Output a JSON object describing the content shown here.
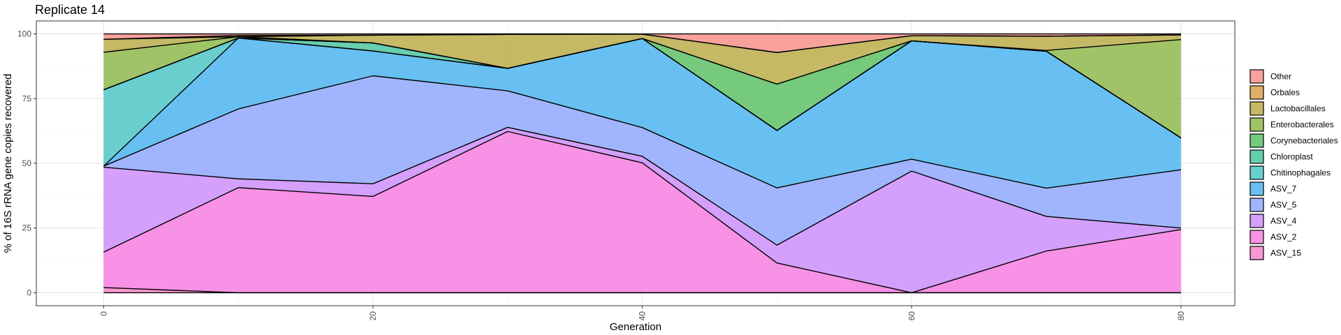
{
  "chart_data": {
    "type": "area",
    "stacked": true,
    "title": "Replicate 14",
    "xlabel": "Generation",
    "ylabel": "% of 16S rRNA gene copies recovered",
    "x": [
      0,
      10,
      20,
      30,
      40,
      50,
      60,
      70,
      80
    ],
    "xlim": [
      -5,
      84
    ],
    "ylim": [
      -5,
      105
    ],
    "x_ticks": [
      0,
      20,
      40,
      60,
      80
    ],
    "y_ticks": [
      0,
      25,
      50,
      75,
      100
    ],
    "grid": true,
    "legend_position": "right",
    "series": [
      {
        "name": "ASV_15",
        "color": "#F885C9",
        "values": [
          2,
          0,
          0,
          0,
          0,
          0,
          0,
          0,
          0
        ]
      },
      {
        "name": "ASV_2",
        "color": "#F67FE2",
        "values": [
          13.7,
          40.6,
          37.2,
          62.3,
          50.2,
          11.5,
          0,
          16.1,
          24.4
        ]
      },
      {
        "name": "ASV_4",
        "color": "#CC8FFB",
        "values": [
          32.8,
          3.4,
          4.9,
          1.6,
          2.5,
          6.9,
          47,
          13.4,
          0.6
        ]
      },
      {
        "name": "ASV_5",
        "color": "#8FA8FD",
        "values": [
          0.4,
          27,
          41.7,
          14.1,
          11.1,
          22.1,
          4.6,
          10.9,
          22.5
        ]
      },
      {
        "name": "ASV_7",
        "color": "#4EB5F0",
        "values": [
          0,
          27.4,
          9.6,
          8.7,
          34.4,
          22.2,
          45.7,
          52.9,
          12.3
        ]
      },
      {
        "name": "Chitinophagales",
        "color": "#4FC5C5",
        "values": [
          29.5,
          0,
          0,
          0,
          0,
          0,
          0,
          0,
          0
        ]
      },
      {
        "name": "Chloroplast",
        "color": "#4CC5A0",
        "values": [
          0,
          0,
          3.1,
          0,
          0,
          0,
          0,
          0,
          0
        ]
      },
      {
        "name": "Corynebacteriales",
        "color": "#5DC166",
        "values": [
          0,
          0,
          0,
          0,
          0,
          17.9,
          0,
          0,
          0
        ]
      },
      {
        "name": "Enterobacterales",
        "color": "#90B84E",
        "values": [
          14.5,
          0.5,
          0,
          0,
          0,
          0,
          0,
          0.3,
          38
        ]
      },
      {
        "name": "Lactobacillales",
        "color": "#BCAD4B",
        "values": [
          5,
          0,
          3,
          13.1,
          1.7,
          12.2,
          2,
          5.5,
          1.8
        ]
      },
      {
        "name": "Orbales",
        "color": "#DEA04C",
        "values": [
          0,
          0.5,
          0,
          0,
          0,
          0,
          0,
          0,
          0
        ]
      },
      {
        "name": "Other",
        "color": "#F8928B",
        "values": [
          2.1,
          0.6,
          0.5,
          0.2,
          0.1,
          7.2,
          0.7,
          0.9,
          0.4
        ]
      }
    ]
  }
}
